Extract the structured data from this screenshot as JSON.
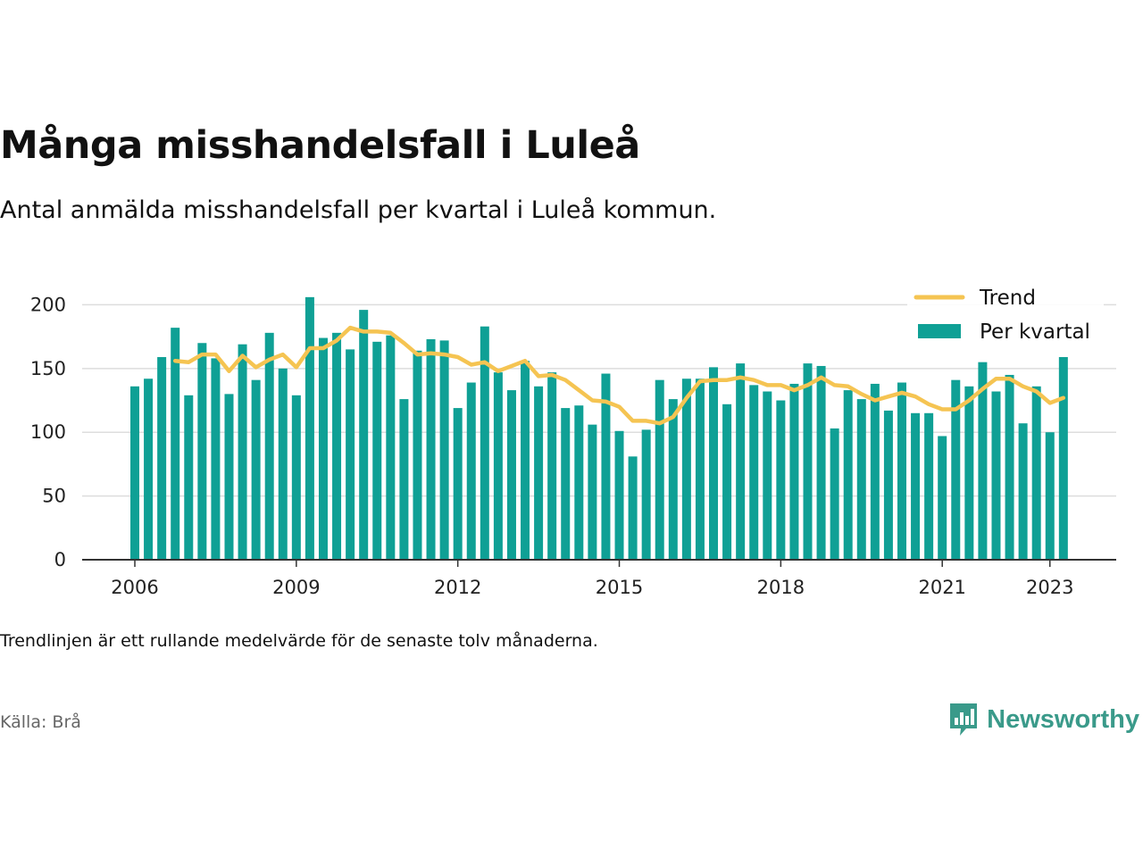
{
  "title": "Många misshandelsfall i Luleå",
  "subtitle": "Antal anmälda misshandelsfall per kvartal i Luleå kommun.",
  "note": "Trendlinjen är ett rullande medelvärde för de senaste tolv månaderna.",
  "source": "Källa: Brå",
  "logo": {
    "text": "Newsworthy",
    "icon": "newsworthy-chart-bubble-icon",
    "color": "#3a9a8a"
  },
  "colors": {
    "bar": "#0fa095",
    "trend": "#f5c452",
    "grid": "#dddddd",
    "axis": "#333333"
  },
  "chart_data": {
    "type": "bar",
    "x_start": "2006 Q1",
    "frequency": "quarterly",
    "ylim": [
      0,
      215
    ],
    "y_ticks": [
      0,
      50,
      100,
      150,
      200
    ],
    "x_ticks": [
      "2006",
      "2009",
      "2012",
      "2015",
      "2018",
      "2021",
      "2023"
    ],
    "grid": true,
    "legend_position": "top-right",
    "series": [
      {
        "name": "Per kvartal",
        "type": "bar",
        "values": [
          136,
          142,
          159,
          182,
          129,
          170,
          158,
          130,
          169,
          141,
          178,
          150,
          129,
          206,
          174,
          178,
          165,
          196,
          171,
          176,
          126,
          164,
          173,
          172,
          119,
          139,
          183,
          147,
          133,
          156,
          136,
          147,
          119,
          121,
          106,
          146,
          101,
          81,
          102,
          141,
          126,
          142,
          142,
          151,
          122,
          154,
          137,
          132,
          125,
          138,
          154,
          152,
          103,
          133,
          126,
          138,
          117,
          139,
          115,
          115,
          97,
          141,
          136,
          155,
          132,
          145,
          107,
          136,
          100,
          159
        ]
      },
      {
        "name": "Trend",
        "type": "line",
        "values": [
          null,
          null,
          null,
          156,
          155,
          161,
          161,
          148,
          160,
          151,
          157,
          161,
          151,
          166,
          166,
          172,
          182,
          179,
          179,
          178,
          170,
          161,
          162,
          161,
          159,
          153,
          155,
          148,
          152,
          156,
          144,
          145,
          141,
          133,
          125,
          124,
          120,
          109,
          109,
          107,
          112,
          127,
          140,
          141,
          141,
          143,
          141,
          137,
          137,
          133,
          137,
          143,
          137,
          136,
          130,
          125,
          128,
          131,
          128,
          122,
          118,
          118,
          125,
          134,
          142,
          142,
          136,
          132,
          123,
          127
        ]
      }
    ]
  }
}
